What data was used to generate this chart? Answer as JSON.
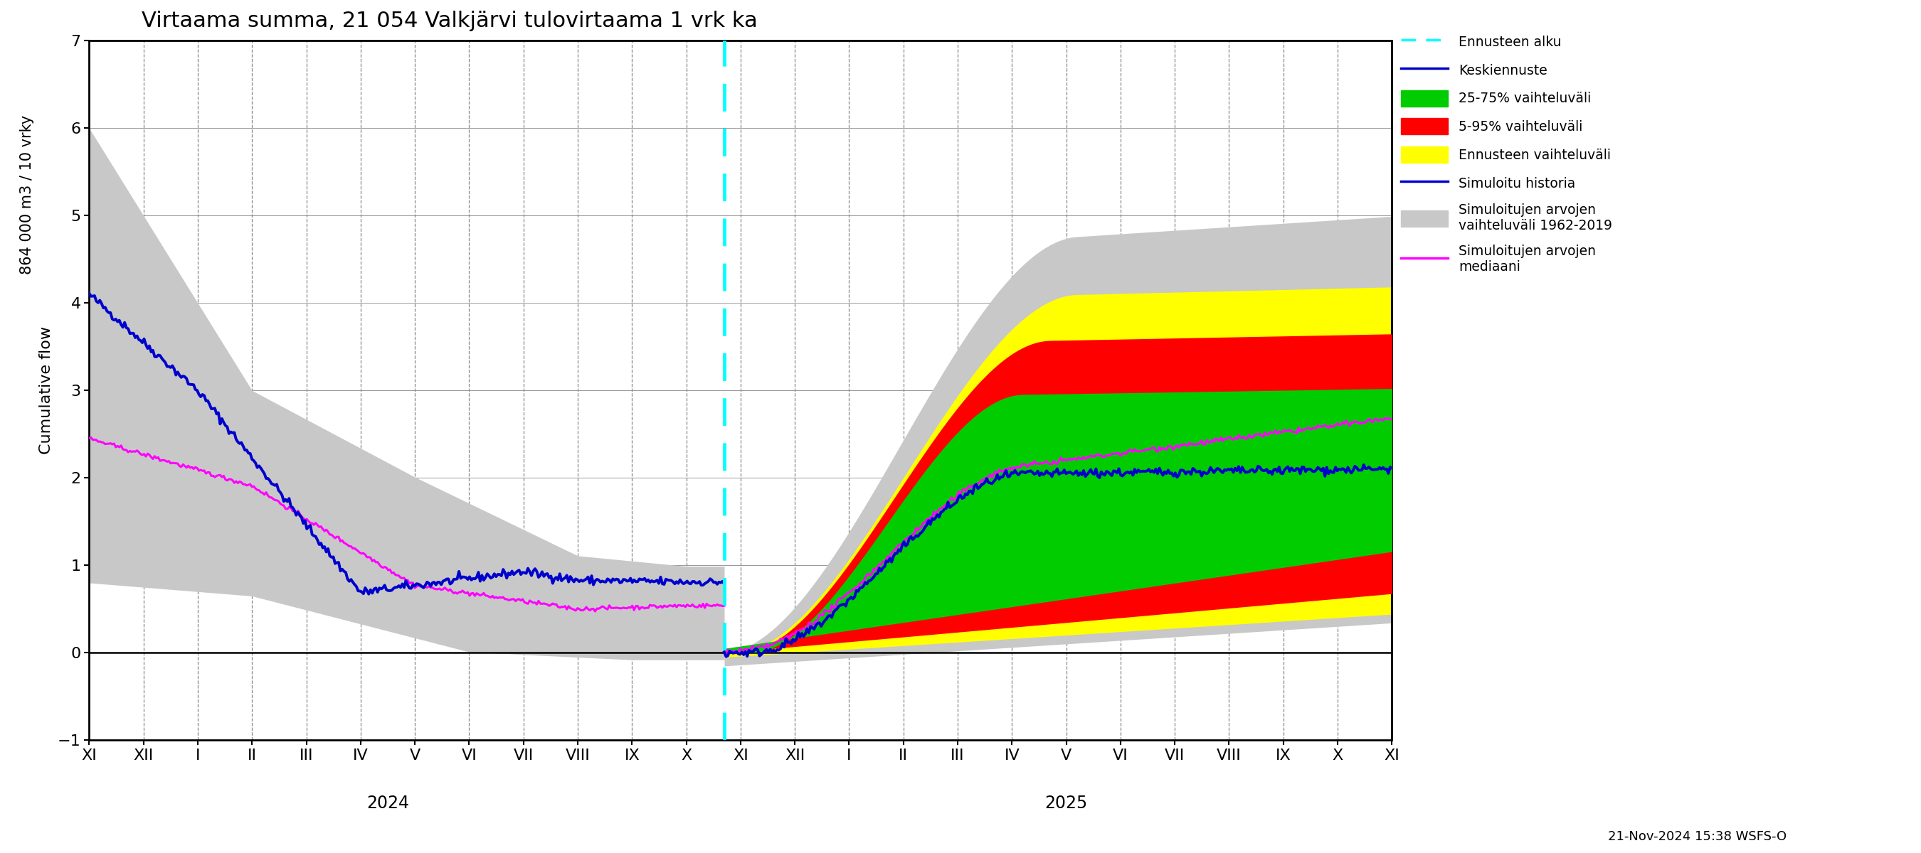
{
  "title": "Virtaama summa, 21 054 Valkjärvi tulovirtaama 1 vrk ka",
  "ylabel_top": "864 000 m3 / 10 vrky",
  "ylabel_bottom": "Cumulative flow",
  "ylim": [
    -1,
    7
  ],
  "yticks": [
    -1,
    0,
    1,
    2,
    3,
    4,
    5,
    6,
    7
  ],
  "footnote": "21-Nov-2024 15:38 WSFS-O",
  "background_color": "#ffffff",
  "grid_color": "#888888",
  "title_fontsize": 22,
  "axis_fontsize": 16,
  "tick_fontsize": 16
}
